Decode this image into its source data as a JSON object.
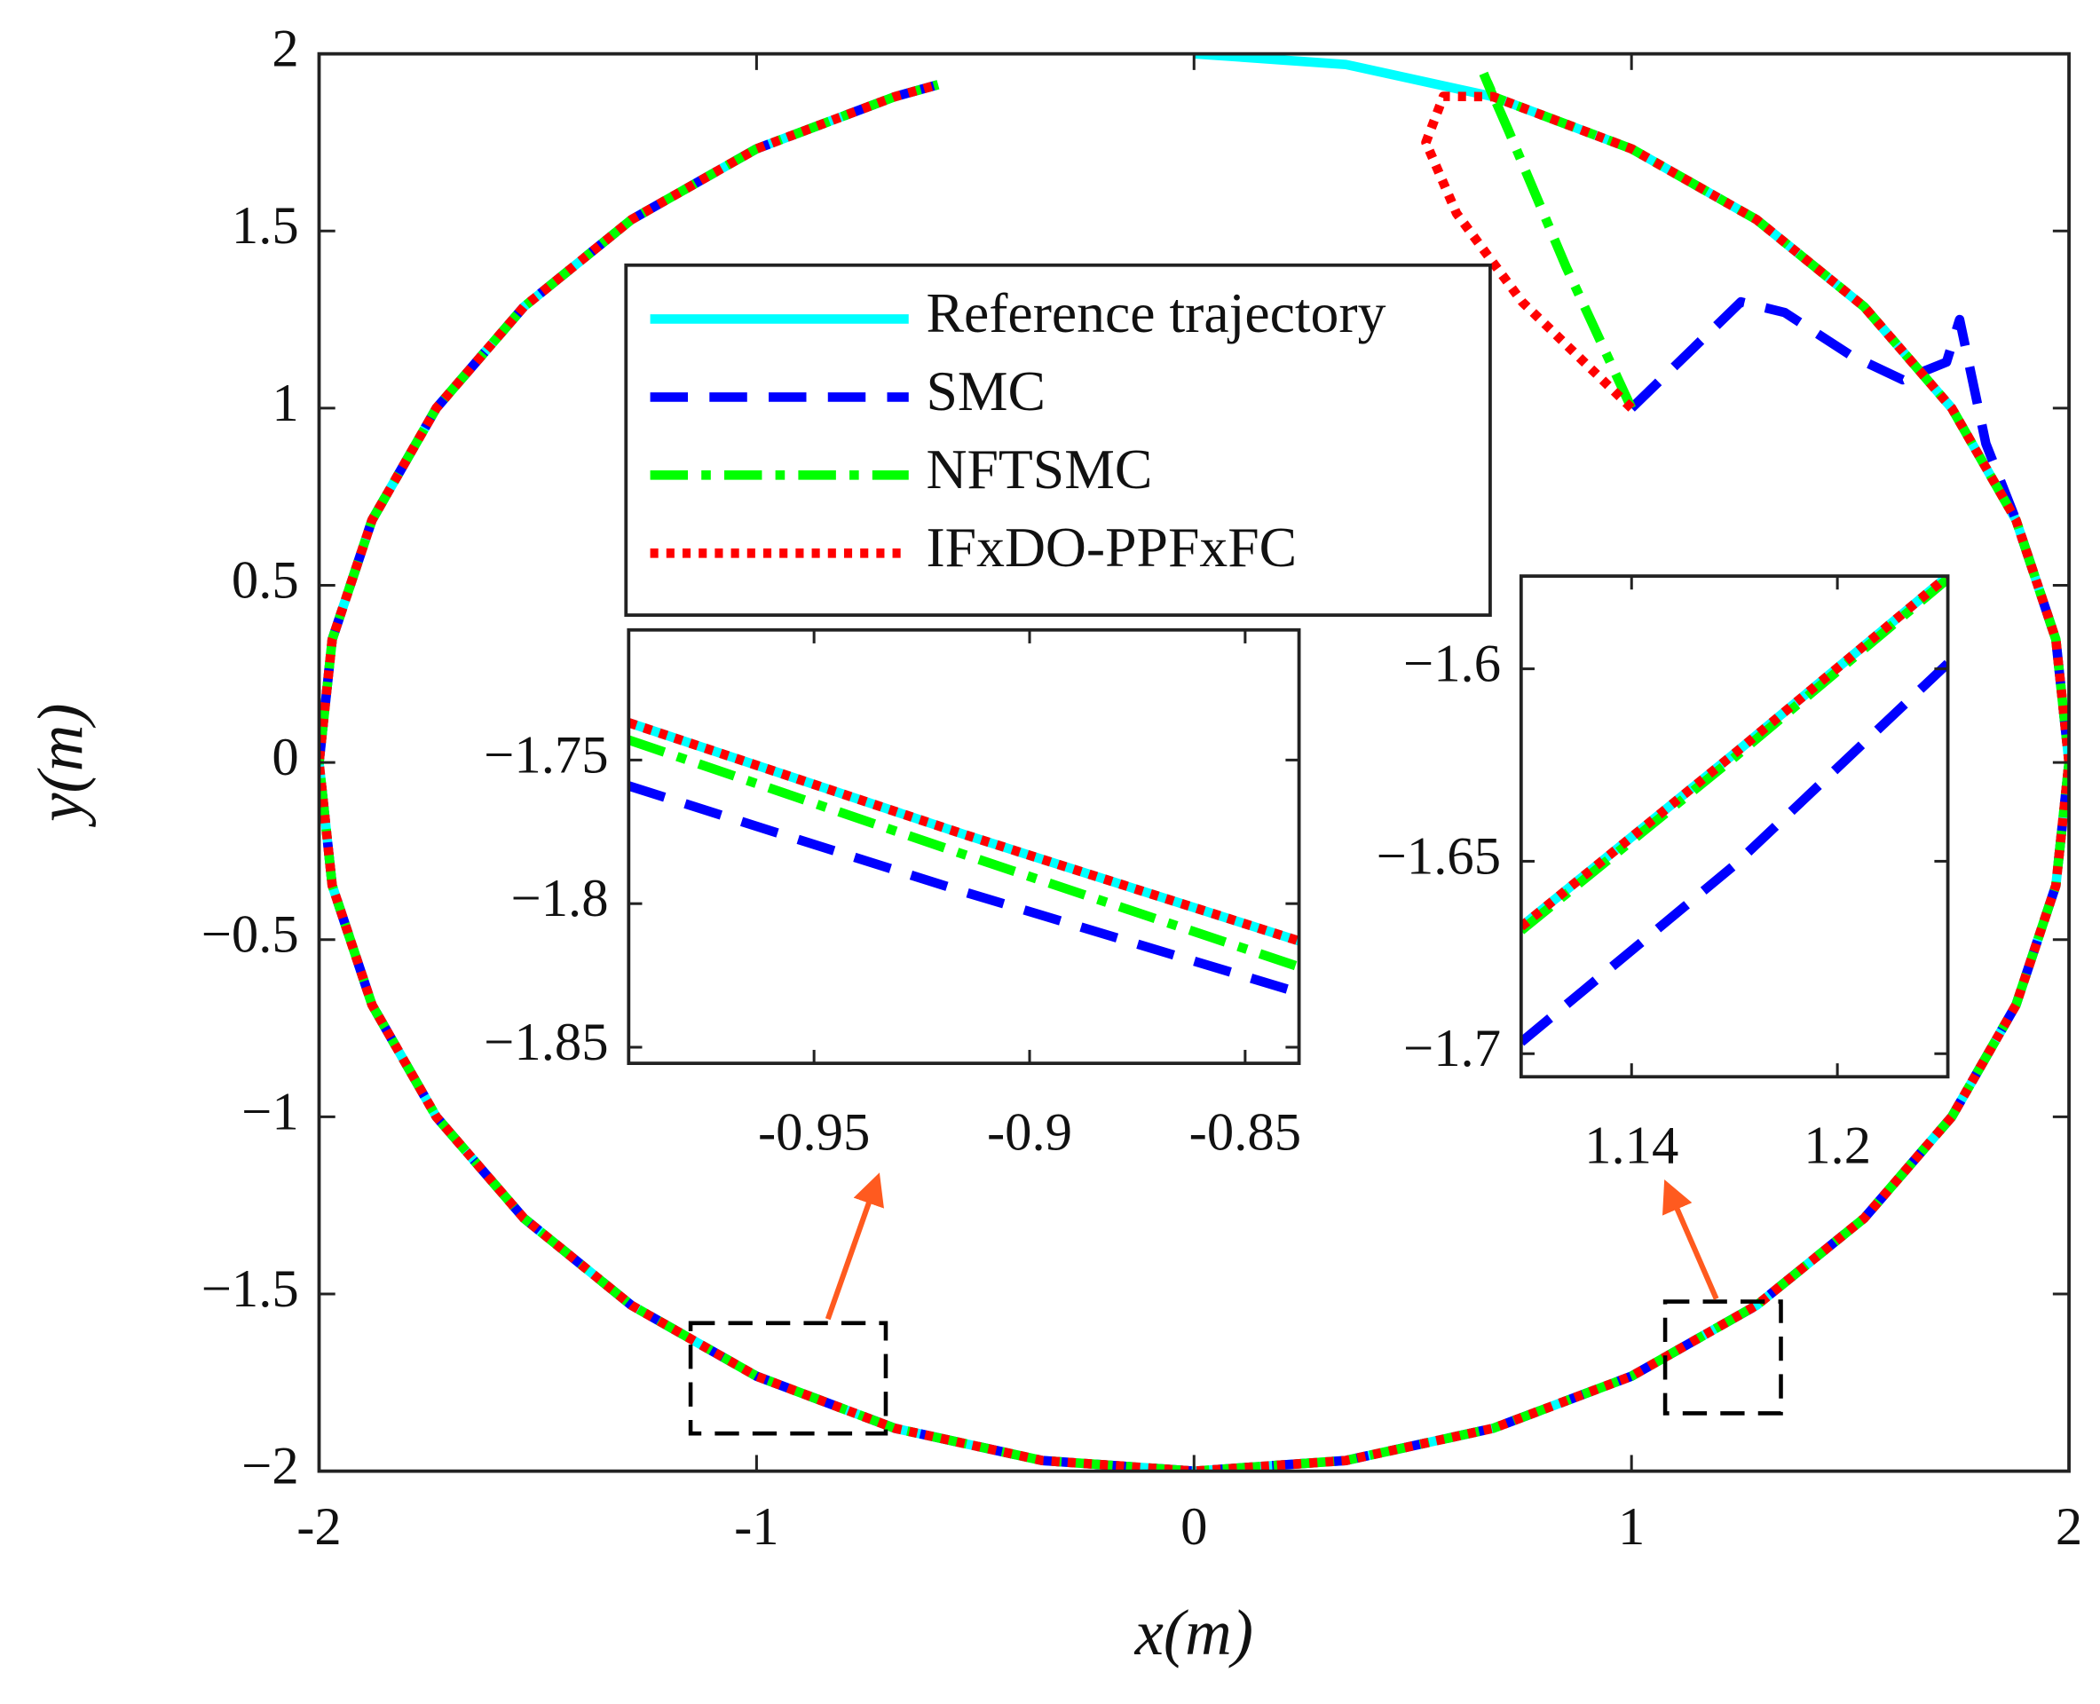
{
  "chart_data": [
    {
      "type": "line",
      "xlabel": "x(m)",
      "ylabel": "y(m)",
      "legend": "upper center",
      "grid": false,
      "xlim": [
        -2,
        2
      ],
      "ylim": [
        -2,
        2
      ],
      "xticks": [
        -2,
        -1,
        0,
        1,
        2
      ],
      "yticks": [
        {
          "value": -2,
          "label": "−2"
        },
        {
          "value": -1.5,
          "label": "−1.5"
        },
        {
          "value": -1,
          "label": "−1"
        },
        {
          "value": -0.5,
          "label": "−0.5"
        },
        0,
        0.5,
        1,
        1.5,
        2
      ],
      "series": [
        {
          "name": "Reference trajectory",
          "color": "#00ffff",
          "style": "solid",
          "x": [
            0,
            0.347,
            0.684,
            1.0,
            1.286,
            1.532,
            1.732,
            1.879,
            1.97,
            2,
            1.97,
            1.879,
            1.732,
            1.532,
            1.286,
            1.0,
            0.684,
            0.347,
            0,
            -0.347,
            -0.684,
            -1.0,
            -1.286,
            -1.532,
            -1.732,
            -1.879,
            -1.97,
            -2,
            -1.97,
            -1.879,
            -1.732,
            -1.532,
            -1.286,
            -1.0,
            -0.684,
            -0.585
          ],
          "y": [
            2,
            1.97,
            1.879,
            1.732,
            1.532,
            1.286,
            1.0,
            0.684,
            0.347,
            0,
            -0.347,
            -0.684,
            -1.0,
            -1.286,
            -1.532,
            -1.732,
            -1.879,
            -1.97,
            -2,
            -1.97,
            -1.879,
            -1.732,
            -1.532,
            -1.286,
            -1.0,
            -0.684,
            -0.347,
            0,
            0.347,
            0.684,
            1.0,
            1.286,
            1.532,
            1.732,
            1.879,
            1.913
          ]
        },
        {
          "name": "SMC",
          "color": "#0000ff",
          "style": "dashed",
          "x": [
            1,
            1.1,
            1.25,
            1.35,
            1.5,
            1.62,
            1.72,
            1.75,
            1.81,
            1.879,
            1.97,
            2,
            1.97,
            1.879,
            1.732,
            1.532,
            1.286,
            1.0,
            0.684,
            0.347,
            0,
            -0.347,
            -0.684,
            -1.0,
            -1.286,
            -1.532,
            -1.732,
            -1.879,
            -1.97,
            -2,
            -1.97,
            -1.879,
            -1.732,
            -1.532,
            -1.286,
            -1.0,
            -0.684,
            -0.585
          ],
          "y": [
            1,
            1.12,
            1.3,
            1.27,
            1.15,
            1.08,
            1.13,
            1.25,
            0.9,
            0.684,
            0.347,
            0,
            -0.347,
            -0.684,
            -1.0,
            -1.286,
            -1.532,
            -1.732,
            -1.879,
            -1.97,
            -2,
            -1.97,
            -1.879,
            -1.732,
            -1.532,
            -1.286,
            -1.0,
            -0.684,
            -0.347,
            0,
            0.347,
            0.684,
            1.0,
            1.286,
            1.532,
            1.732,
            1.879,
            1.913
          ]
        },
        {
          "name": "NFTSMC",
          "color": "#00ff00",
          "style": "dashdot",
          "x": [
            1,
            0.85,
            0.72,
            0.66,
            0.684,
            1.0,
            1.286,
            1.532,
            1.732,
            1.879,
            1.97,
            2,
            1.97,
            1.879,
            1.732,
            1.532,
            1.286,
            1.0,
            0.684,
            0.347,
            0,
            -0.347,
            -0.684,
            -1.0,
            -1.286,
            -1.532,
            -1.732,
            -1.879,
            -1.97,
            -2,
            -1.97,
            -1.879,
            -1.732,
            -1.532,
            -1.286,
            -1.0,
            -0.684,
            -0.585
          ],
          "y": [
            1,
            1.4,
            1.78,
            1.95,
            1.879,
            1.732,
            1.532,
            1.286,
            1.0,
            0.684,
            0.347,
            0,
            -0.347,
            -0.684,
            -1.0,
            -1.286,
            -1.532,
            -1.732,
            -1.879,
            -1.97,
            -2,
            -1.97,
            -1.879,
            -1.732,
            -1.532,
            -1.286,
            -1.0,
            -0.684,
            -0.347,
            0,
            0.347,
            0.684,
            1.0,
            1.286,
            1.532,
            1.732,
            1.879,
            1.913
          ]
        },
        {
          "name": "IFxDO-PPFxFC",
          "color": "#ff0000",
          "style": "dotted",
          "x": [
            1,
            0.75,
            0.6,
            0.53,
            0.57,
            0.684,
            1.0,
            1.286,
            1.532,
            1.732,
            1.879,
            1.97,
            2,
            1.97,
            1.879,
            1.732,
            1.532,
            1.286,
            1.0,
            0.684,
            0.347,
            0,
            -0.347,
            -0.684,
            -1.0,
            -1.286,
            -1.532,
            -1.732,
            -1.879,
            -1.97,
            -2,
            -1.97,
            -1.879,
            -1.732,
            -1.532,
            -1.286,
            -1.0,
            -0.684,
            -0.585
          ],
          "y": [
            1,
            1.3,
            1.55,
            1.75,
            1.88,
            1.879,
            1.732,
            1.532,
            1.286,
            1.0,
            0.684,
            0.347,
            0,
            -0.347,
            -0.684,
            -1.0,
            -1.286,
            -1.532,
            -1.732,
            -1.879,
            -1.97,
            -2,
            -1.97,
            -1.879,
            -1.732,
            -1.532,
            -1.286,
            -1.0,
            -0.684,
            -0.347,
            0,
            0.347,
            0.684,
            1.0,
            1.286,
            1.532,
            1.732,
            1.879,
            1.913
          ]
        }
      ]
    },
    {
      "type": "line",
      "xlim": [
        -0.993,
        -0.8375
      ],
      "ylim": [
        -1.8556,
        -1.7047
      ],
      "xticks": [
        -0.95,
        -0.9,
        -0.85
      ],
      "yticks": [
        {
          "value": -1.85,
          "label": "−1.85"
        },
        {
          "value": -1.8,
          "label": "−1.8"
        },
        {
          "value": -1.75,
          "label": "−1.75"
        }
      ],
      "series": [
        {
          "color": "#00ffff",
          "style": "solid",
          "x": [
            -0.993,
            -0.915,
            -0.8375
          ],
          "y": [
            -1.737,
            -1.776,
            -1.813
          ]
        },
        {
          "color": "#0000ff",
          "style": "dashed",
          "x": [
            -0.993,
            -0.915,
            -0.8375
          ],
          "y": [
            -1.759,
            -1.796,
            -1.831
          ]
        },
        {
          "color": "#00ff00",
          "style": "dashdot",
          "x": [
            -0.993,
            -0.915,
            -0.8375
          ],
          "y": [
            -1.743,
            -1.783,
            -1.822
          ]
        },
        {
          "color": "#ff0000",
          "style": "dotted",
          "x": [
            -0.993,
            -0.915,
            -0.8375
          ],
          "y": [
            -1.737,
            -1.776,
            -1.813
          ]
        }
      ]
    },
    {
      "type": "line",
      "xlim": [
        1.1078,
        1.2322
      ],
      "ylim": [
        -1.706,
        -1.5759
      ],
      "xticks": [
        1.14,
        1.2
      ],
      "yticks": [
        {
          "value": -1.7,
          "label": "−1.7"
        },
        {
          "value": -1.65,
          "label": "−1.65"
        },
        {
          "value": -1.6,
          "label": "−1.6"
        }
      ],
      "series": [
        {
          "color": "#00ffff",
          "style": "solid",
          "x": [
            1.1078,
            1.17,
            1.2322
          ],
          "y": [
            -1.667,
            -1.622,
            -1.5759
          ]
        },
        {
          "color": "#0000ff",
          "style": "dashed",
          "x": [
            1.1078,
            1.17,
            1.2322
          ],
          "y": [
            -1.697,
            -1.651,
            -1.5986
          ]
        },
        {
          "color": "#00ff00",
          "style": "dashdot",
          "x": [
            1.1078,
            1.17,
            1.2322
          ],
          "y": [
            -1.668,
            -1.623,
            -1.5766
          ]
        },
        {
          "color": "#ff0000",
          "style": "dotted",
          "x": [
            1.1078,
            1.17,
            1.2322
          ],
          "y": [
            -1.667,
            -1.622,
            -1.5759
          ]
        }
      ]
    }
  ]
}
